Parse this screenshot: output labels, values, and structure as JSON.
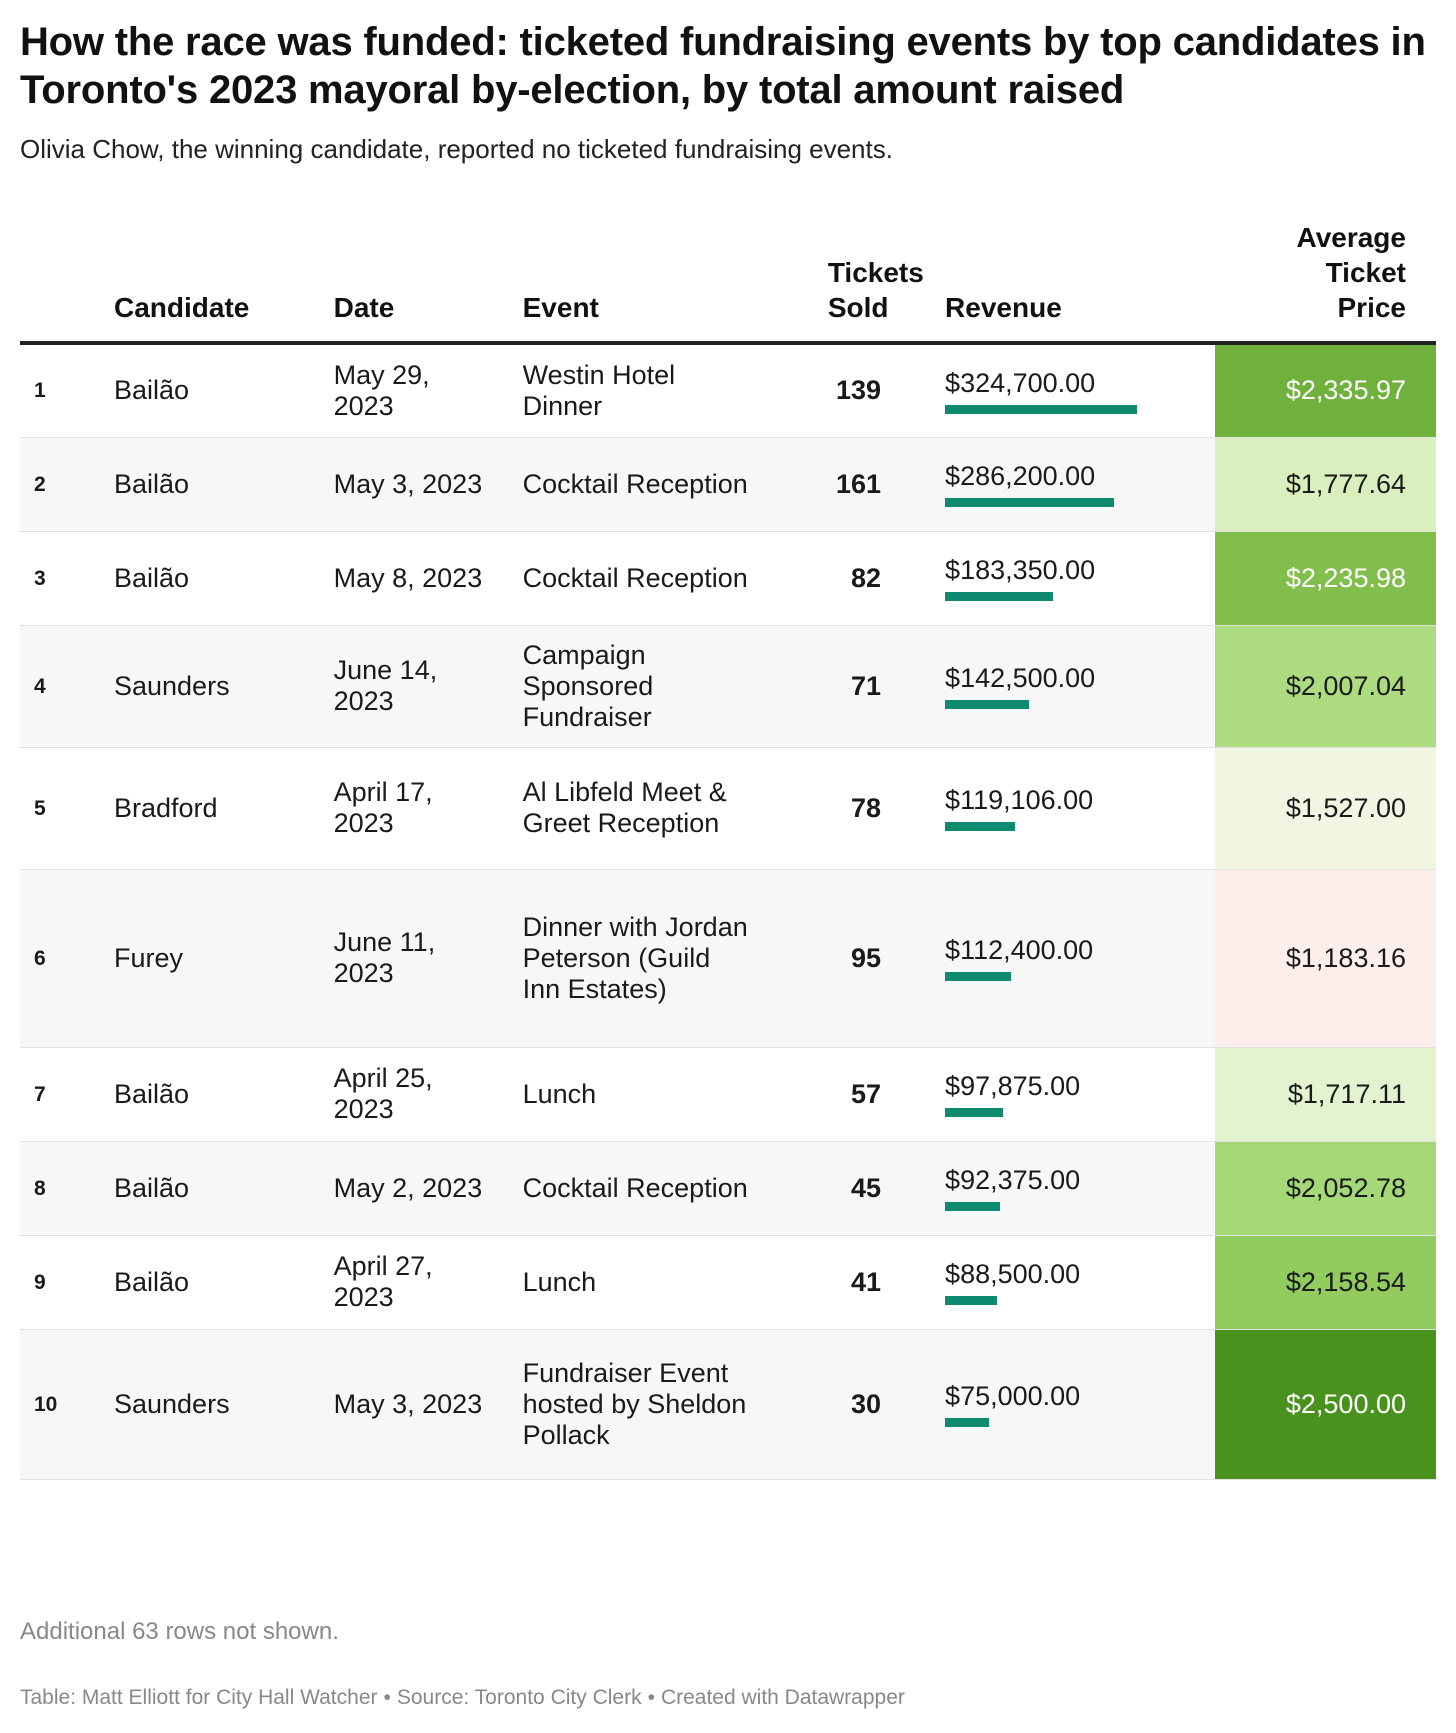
{
  "header": {
    "title": "How the race was funded: ticketed fundraising events by top candidates in Toronto's 2023 mayoral by-election, by total amount raised",
    "subtitle": "Olivia Chow, the winning candidate, reported no ticketed fundraising events."
  },
  "chart_data": {
    "type": "table",
    "columns": [
      "",
      "Candidate",
      "Date",
      "Event",
      "Tickets Sold",
      "Revenue",
      "Average Ticket Price"
    ],
    "rows": [
      {
        "rank": "1",
        "candidate": "Bailão",
        "date": "May 29, 2023",
        "event": "Westin Hotel Dinner",
        "tickets": "139",
        "revenue": "$324,700.00",
        "revenue_value": 324700,
        "avg": "$2,335.97",
        "avg_value": 2335.97
      },
      {
        "rank": "2",
        "candidate": "Bailão",
        "date": "May 3, 2023",
        "event": "Cocktail Reception",
        "tickets": "161",
        "revenue": "$286,200.00",
        "revenue_value": 286200,
        "avg": "$1,777.64",
        "avg_value": 1777.64
      },
      {
        "rank": "3",
        "candidate": "Bailão",
        "date": "May 8, 2023",
        "event": "Cocktail Reception",
        "tickets": "82",
        "revenue": "$183,350.00",
        "revenue_value": 183350,
        "avg": "$2,235.98",
        "avg_value": 2235.98
      },
      {
        "rank": "4",
        "candidate": "Saunders",
        "date": "June 14, 2023",
        "event": "Campaign Sponsored Fundraiser",
        "tickets": "71",
        "revenue": "$142,500.00",
        "revenue_value": 142500,
        "avg": "$2,007.04",
        "avg_value": 2007.04
      },
      {
        "rank": "5",
        "candidate": "Bradford",
        "date": "April 17, 2023",
        "event": "Al Libfeld Meet & Greet Reception",
        "tickets": "78",
        "revenue": "$119,106.00",
        "revenue_value": 119106,
        "avg": "$1,527.00",
        "avg_value": 1527.0
      },
      {
        "rank": "6",
        "candidate": "Furey",
        "date": "June 11, 2023",
        "event": "Dinner with Jordan Peterson (Guild Inn Estates)",
        "tickets": "95",
        "revenue": "$112,400.00",
        "revenue_value": 112400,
        "avg": "$1,183.16",
        "avg_value": 1183.16
      },
      {
        "rank": "7",
        "candidate": "Bailão",
        "date": "April 25, 2023",
        "event": "Lunch",
        "tickets": "57",
        "revenue": "$97,875.00",
        "revenue_value": 97875,
        "avg": "$1,717.11",
        "avg_value": 1717.11
      },
      {
        "rank": "8",
        "candidate": "Bailão",
        "date": "May 2, 2023",
        "event": "Cocktail Reception",
        "tickets": "45",
        "revenue": "$92,375.00",
        "revenue_value": 92375,
        "avg": "$2,052.78",
        "avg_value": 2052.78
      },
      {
        "rank": "9",
        "candidate": "Bailão",
        "date": "April 27, 2023",
        "event": "Lunch",
        "tickets": "41",
        "revenue": "$88,500.00",
        "revenue_value": 88500,
        "avg": "$2,158.54",
        "avg_value": 2158.54
      },
      {
        "rank": "10",
        "candidate": "Saunders",
        "date": "May 3, 2023",
        "event": "Fundraiser Event hosted by Sheldon Pollack",
        "tickets": "30",
        "revenue": "$75,000.00",
        "revenue_value": 75000,
        "avg": "$2,500.00",
        "avg_value": 2500.0
      }
    ],
    "revenue_bar_max": 324700,
    "colors": {
      "bar": "#0e8a6e",
      "avg_scale": [
        {
          "value": 1183.16,
          "color": "#fcefeb"
        },
        {
          "value": 1527.0,
          "color": "#f0f6e2"
        },
        {
          "value": 1717.11,
          "color": "#e3f3cf"
        },
        {
          "value": 1777.64,
          "color": "#d9f0be"
        },
        {
          "value": 2007.04,
          "color": "#addc80"
        },
        {
          "value": 2052.78,
          "color": "#a5d876"
        },
        {
          "value": 2158.54,
          "color": "#92cc5e"
        },
        {
          "value": 2235.98,
          "color": "#82be4c"
        },
        {
          "value": 2335.97,
          "color": "#70b13e"
        },
        {
          "value": 2500.0,
          "color": "#4a921e"
        }
      ]
    }
  },
  "table_header": {
    "rank": "",
    "candidate": "Candidate",
    "date": "Date",
    "event": "Event",
    "tickets": "Tickets Sold",
    "revenue": "Revenue",
    "avg": "Average Ticket Price"
  },
  "footer": {
    "note": "Additional 63 rows not shown.",
    "credit_parts": [
      "Table: Matt Elliott for City Hall Watcher",
      "Source: Toronto City Clerk",
      "Created with Datawrapper"
    ]
  }
}
